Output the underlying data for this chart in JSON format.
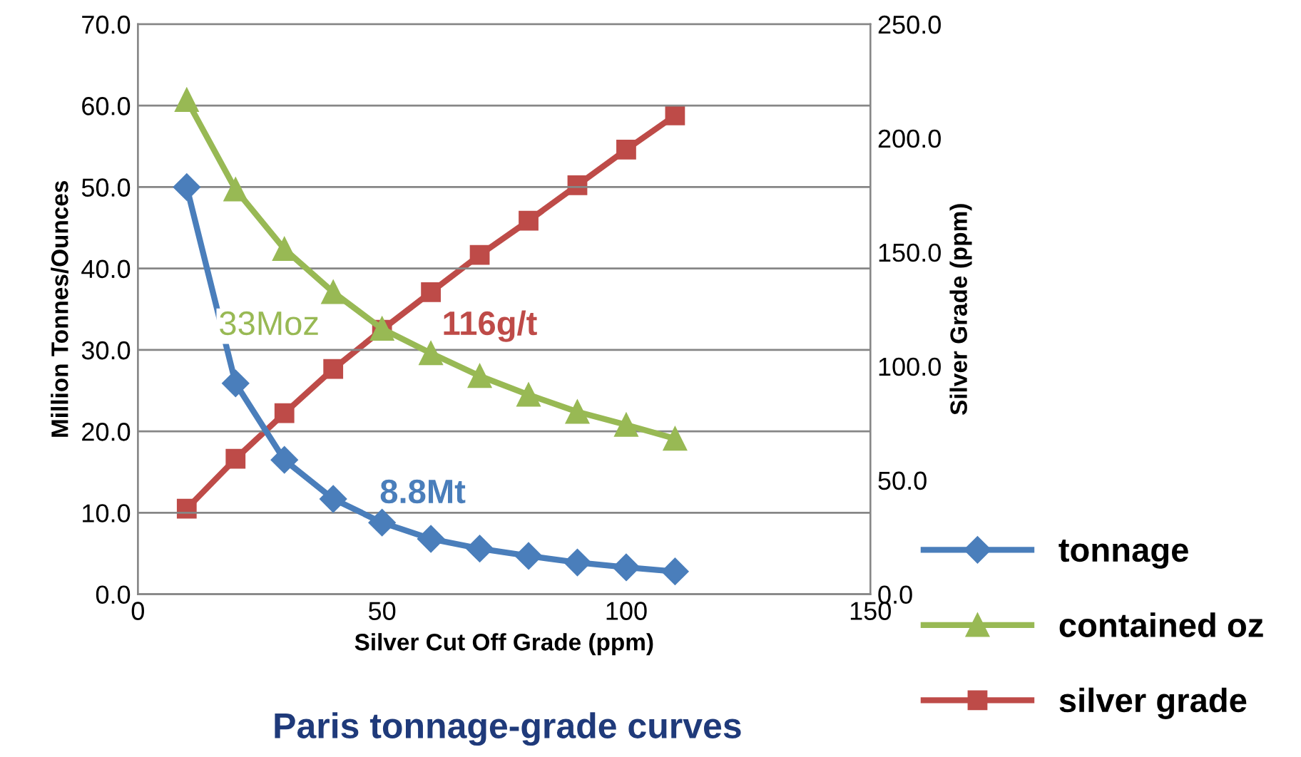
{
  "chart_data": {
    "type": "line",
    "title": "Paris tonnage-grade curves",
    "xlabel": "Silver Cut Off Grade (ppm)",
    "ylabel": "Million Tonnes/Ounces",
    "y2label": "Silver Grade (ppm)",
    "x": [
      10,
      20,
      30,
      40,
      50,
      60,
      70,
      80,
      90,
      100,
      110
    ],
    "xlim": [
      0,
      150
    ],
    "xticks": [
      0,
      50,
      100,
      150
    ],
    "ylim": [
      0,
      70
    ],
    "yticks": [
      {
        "value": 0,
        "label": "0.0"
      },
      {
        "value": 10,
        "label": "10.0"
      },
      {
        "value": 20,
        "label": "20.0"
      },
      {
        "value": 30,
        "label": "30.0"
      },
      {
        "value": 40,
        "label": "40.0"
      },
      {
        "value": 50,
        "label": "50.0"
      },
      {
        "value": 60,
        "label": "60.0"
      },
      {
        "value": 70,
        "label": "70.0"
      }
    ],
    "y2lim": [
      0,
      250
    ],
    "y2ticks": [
      {
        "value": 0,
        "label": "0.0"
      },
      {
        "value": 50,
        "label": "50.0"
      },
      {
        "value": 100,
        "label": "100.0"
      },
      {
        "value": 150,
        "label": "150.0"
      },
      {
        "value": 200,
        "label": "200.0"
      },
      {
        "value": 250,
        "label": "250.0"
      }
    ],
    "grid": "y",
    "legend": "bottom right",
    "series": [
      {
        "name": "tonnage",
        "color": "#4a7ebb",
        "marker": "diamond",
        "values": [
          50.0,
          25.9,
          16.5,
          11.7,
          8.8,
          6.8,
          5.6,
          4.7,
          3.9,
          3.3,
          2.8
        ]
      },
      {
        "name": "contained oz",
        "color": "#98b954",
        "marker": "triangle",
        "values": [
          60.7,
          49.7,
          42.4,
          37.1,
          32.6,
          29.6,
          26.8,
          24.5,
          22.4,
          20.8,
          19.1
        ]
      },
      {
        "name": "silver grade",
        "color": "#be4b48",
        "marker": "square",
        "axis": "y2",
        "values": [
          37.5,
          59.4,
          79.4,
          98.8,
          116,
          132.5,
          148.8,
          163.8,
          179.4,
          195,
          210
        ]
      }
    ],
    "annotations": [
      "8.8Mt",
      "33Moz",
      "116g/t"
    ]
  }
}
